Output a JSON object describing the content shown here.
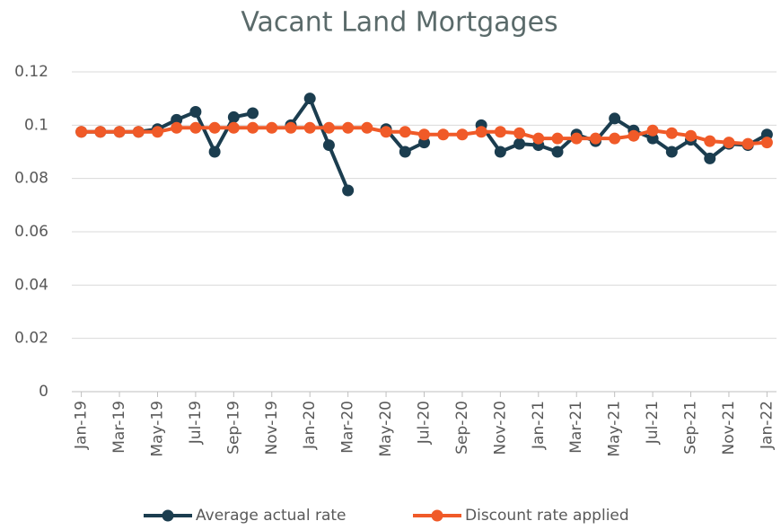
{
  "chart_data": {
    "type": "line",
    "title": "Vacant Land Mortgages",
    "categories": [
      "Jan-19",
      null,
      "Mar-19",
      null,
      "May-19",
      null,
      "Jul-19",
      null,
      "Sep-19",
      null,
      "Nov-19",
      null,
      "Jan-20",
      null,
      "Mar-20",
      null,
      "May-20",
      null,
      "Jul-20",
      null,
      "Sep-20",
      null,
      "Nov-20",
      null,
      "Jan-21",
      null,
      "Mar-21",
      null,
      "May-21",
      null,
      "Jul-21",
      null,
      "Sep-21",
      null,
      "Nov-21",
      null,
      "Jan-22"
    ],
    "series": [
      {
        "name": "Average actual rate",
        "color": "#1b3d4f",
        "values": [
          0.0975,
          0.0975,
          0.0975,
          0.0975,
          0.0985,
          0.102,
          0.105,
          0.09,
          0.103,
          0.1045,
          null,
          0.1,
          0.11,
          0.0925,
          0.0755,
          null,
          0.0985,
          0.09,
          0.0935,
          null,
          null,
          0.1,
          0.09,
          0.093,
          0.0925,
          0.09,
          0.0965,
          0.094,
          0.1025,
          0.098,
          0.095,
          0.09,
          0.0945,
          0.0875,
          0.093,
          0.0925,
          0.0965
        ]
      },
      {
        "name": "Discount rate applied",
        "color": "#f05a28",
        "values": [
          0.0975,
          0.0975,
          0.0975,
          0.0975,
          0.0975,
          0.099,
          0.099,
          0.099,
          0.099,
          0.099,
          0.099,
          0.099,
          0.099,
          0.099,
          0.099,
          0.099,
          0.0975,
          0.0975,
          0.0965,
          0.0965,
          0.0965,
          0.0975,
          0.0975,
          0.097,
          0.095,
          0.095,
          0.095,
          0.095,
          0.095,
          0.096,
          0.098,
          0.097,
          0.096,
          0.094,
          0.0935,
          0.093,
          0.0935
        ]
      }
    ],
    "ylim": [
      0,
      0.12
    ],
    "yticks": [
      0,
      0.02,
      0.04,
      0.06,
      0.08,
      0.1,
      0.12
    ],
    "grid": true,
    "legend": "bottom"
  }
}
